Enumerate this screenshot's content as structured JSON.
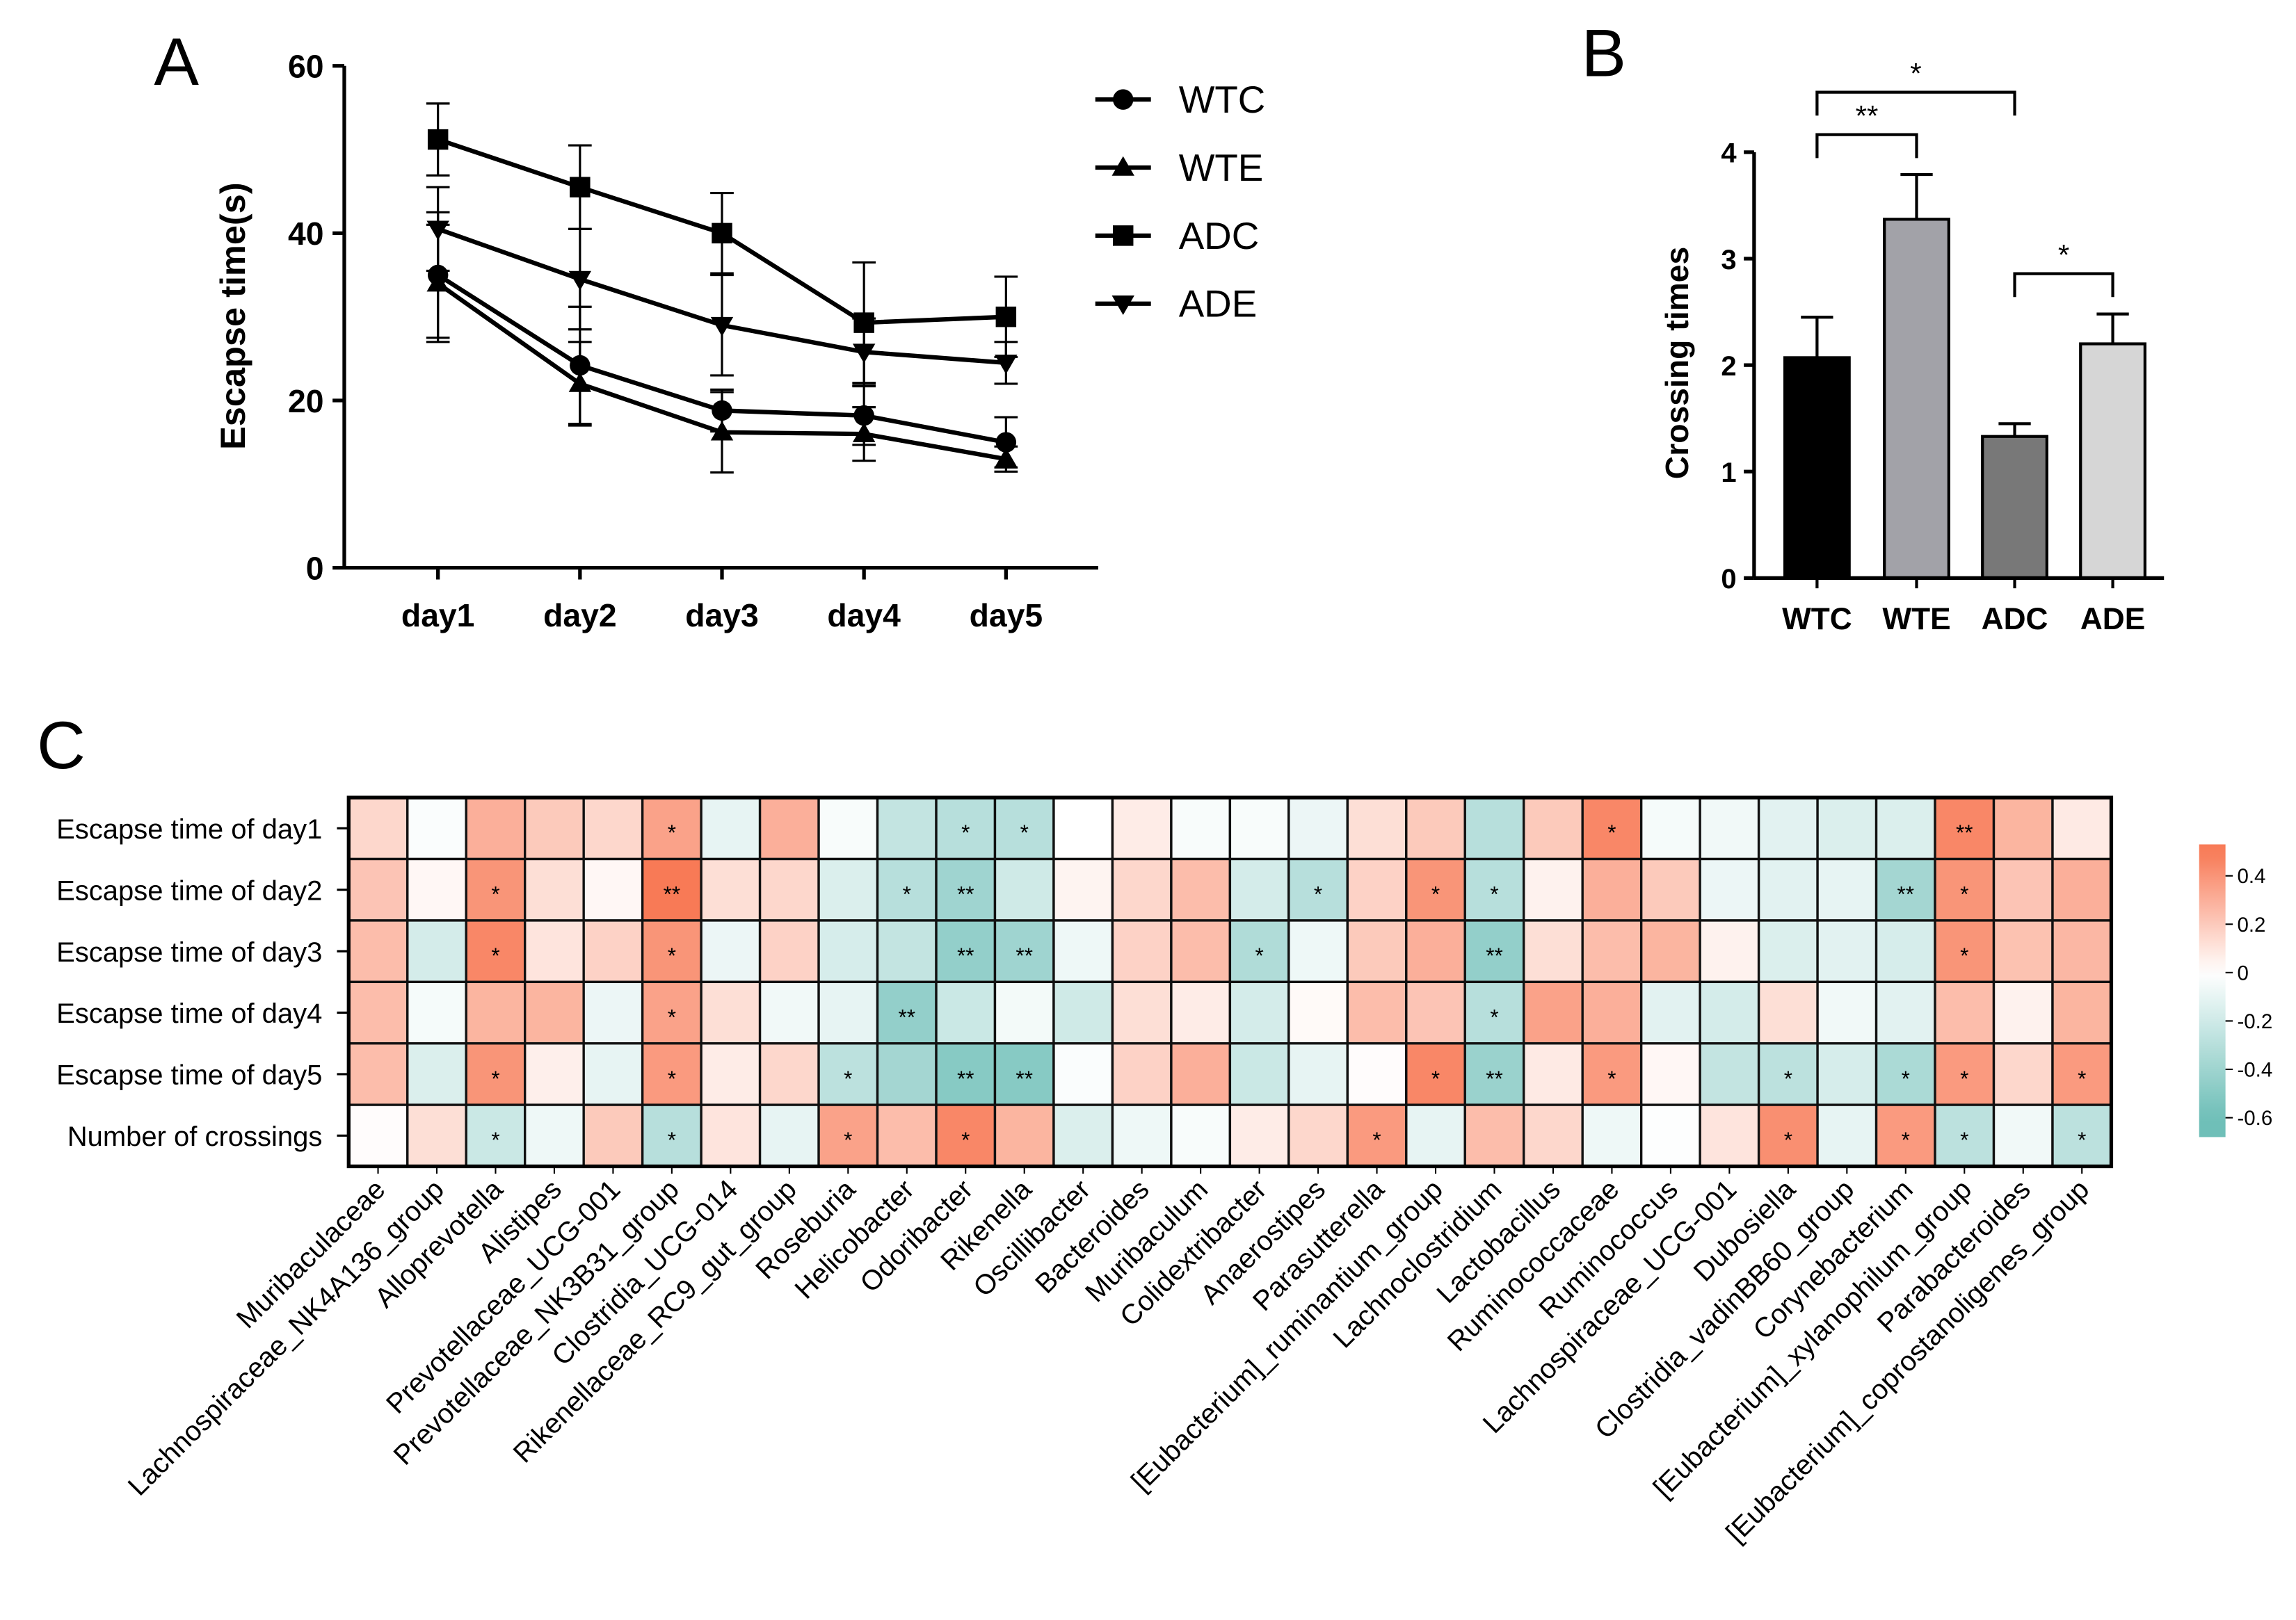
{
  "chart_data": [
    {
      "panel": "A",
      "type": "line",
      "ylabel": "Escapse time(s)",
      "xlabel": "",
      "categories": [
        "day1",
        "day2",
        "day3",
        "day4",
        "day5"
      ],
      "ylim": [
        0,
        60
      ],
      "yticks": [
        0,
        20,
        40,
        60
      ],
      "legend_position": "right",
      "series": [
        {
          "name": "WTC",
          "marker": "circle",
          "values": [
            35,
            24.2,
            18.8,
            18.2,
            15
          ],
          "errors": [
            7.5,
            7,
            2.5,
            3.5,
            3
          ]
        },
        {
          "name": "WTE",
          "marker": "triangle-up",
          "values": [
            34,
            22,
            16.2,
            16,
            13
          ],
          "errors": [
            7,
            5,
            4.8,
            3.2,
            1.5
          ]
        },
        {
          "name": "ADC",
          "marker": "square",
          "values": [
            51.2,
            45.5,
            40,
            29.3,
            30
          ],
          "errors": [
            4.3,
            5,
            4.8,
            7.2,
            4.8
          ]
        },
        {
          "name": "ADE",
          "marker": "triangle-down",
          "values": [
            40.5,
            34.5,
            29,
            25.8,
            24.5
          ],
          "errors": [
            5,
            6,
            6,
            4,
            2.5
          ]
        }
      ]
    },
    {
      "panel": "B",
      "type": "bar",
      "ylabel": "Crossing times",
      "categories": [
        "WTC",
        "WTE",
        "ADC",
        "ADE"
      ],
      "values": [
        2.07,
        3.37,
        1.33,
        2.2
      ],
      "errors": [
        0.38,
        0.42,
        0.12,
        0.28
      ],
      "colors": [
        "#000000",
        "#a2a2a8",
        "#787878",
        "#d6d6d6"
      ],
      "ylim": [
        0,
        4
      ],
      "yticks": [
        0,
        1,
        2,
        3,
        4
      ],
      "significance": [
        {
          "from": "WTC",
          "to": "ADC",
          "label": "*"
        },
        {
          "from": "WTC",
          "to": "WTE",
          "label": "**"
        },
        {
          "from": "ADC",
          "to": "ADE",
          "label": "*"
        }
      ]
    },
    {
      "panel": "C",
      "type": "heatmap",
      "rows": [
        "Escapse time of day1",
        "Escapse time of day2",
        "Escapse time of day3",
        "Escapse time of day4",
        "Escapse time of day5",
        "Number of crossings"
      ],
      "columns": [
        "Muribaculaceae",
        "Lachnospiraceae_NK4A136_group",
        "Alloprevotella",
        "Alistipes",
        "Prevotellaceae_UCG-001",
        "Prevotellaceae_NK3B31_group",
        "Clostridia_UCG-014",
        "Rikenellaceae_RC9_gut_group",
        "Roseburia",
        "Helicobacter",
        "Odoribacter",
        "Rikenella",
        "Oscillibacter",
        "Bacteroides",
        "Muribaculum",
        "Colidextribacter",
        "Anaerostipes",
        "Parasutterella",
        "[Eubacterium]_ruminantium_group",
        "Lachnoclostridium",
        "Lactobacillus",
        "Ruminococcaceae",
        "Ruminococcus",
        "Lachnospiraceae_UCG-001",
        "Dubosiella",
        "Clostridia_vadinBB60_group",
        "Corynebacterium",
        "[Eubacterium]_xylanophilum_group",
        "Parabacteroides",
        "[Eubacterium]_coprostanoligenes_group"
      ],
      "values": [
        [
          0.15,
          -0.02,
          0.3,
          0.2,
          0.15,
          0.35,
          -0.1,
          0.3,
          -0.03,
          -0.25,
          -0.3,
          -0.3,
          0,
          0.07,
          -0.03,
          -0.03,
          -0.08,
          0.12,
          0.2,
          -0.3,
          0.2,
          0.45,
          -0.04,
          -0.06,
          -0.12,
          -0.15,
          -0.15,
          0.45,
          0.28,
          0.08
        ],
        [
          0.22,
          0.03,
          0.4,
          0.12,
          0.03,
          0.5,
          0.12,
          0.15,
          -0.15,
          -0.3,
          -0.4,
          -0.2,
          0.04,
          0.15,
          0.25,
          -0.18,
          -0.3,
          0.17,
          0.4,
          -0.3,
          0.05,
          0.3,
          0.2,
          -0.08,
          -0.12,
          -0.1,
          -0.38,
          0.4,
          0.22,
          0.3
        ],
        [
          0.25,
          -0.18,
          0.45,
          0.1,
          0.17,
          0.4,
          -0.08,
          0.17,
          -0.17,
          -0.25,
          -0.45,
          -0.4,
          -0.07,
          0.17,
          0.25,
          -0.33,
          -0.07,
          0.2,
          0.3,
          -0.45,
          0.12,
          0.25,
          0.28,
          0.05,
          -0.15,
          -0.12,
          -0.17,
          0.4,
          0.23,
          0.27
        ],
        [
          0.25,
          -0.04,
          0.28,
          0.28,
          -0.08,
          0.35,
          0.12,
          -0.06,
          -0.1,
          -0.45,
          -0.22,
          -0.05,
          -0.2,
          0.12,
          0.07,
          -0.18,
          0.02,
          0.25,
          0.22,
          -0.3,
          0.35,
          0.3,
          -0.12,
          -0.18,
          0.12,
          -0.06,
          -0.12,
          0.25,
          0.05,
          0.28
        ],
        [
          0.25,
          -0.15,
          0.4,
          0.06,
          -0.1,
          0.38,
          0.07,
          0.15,
          -0.28,
          -0.38,
          -0.5,
          -0.5,
          -0.02,
          0.17,
          0.3,
          -0.22,
          -0.1,
          0.01,
          0.45,
          -0.42,
          0.08,
          0.38,
          0.03,
          -0.25,
          -0.28,
          -0.17,
          -0.35,
          0.38,
          0.15,
          0.38
        ],
        [
          0.01,
          0.12,
          -0.22,
          -0.07,
          0.2,
          -0.3,
          0.1,
          -0.1,
          0.35,
          0.25,
          0.45,
          0.28,
          -0.15,
          -0.07,
          -0.03,
          0.07,
          0.15,
          0.38,
          -0.1,
          0.25,
          0.15,
          -0.07,
          -0.01,
          0.1,
          0.42,
          -0.1,
          0.38,
          -0.28,
          -0.06,
          -0.28
        ]
      ],
      "significance": [
        [
          "",
          "",
          "",
          "",
          "",
          "*",
          "",
          "",
          "",
          "",
          "*",
          "*",
          "",
          "",
          "",
          "",
          "",
          "",
          "",
          "",
          "",
          "*",
          "",
          "",
          "",
          "",
          "",
          "**",
          "",
          ""
        ],
        [
          "",
          "",
          "*",
          "",
          "",
          "**",
          "",
          "",
          "",
          "*",
          "**",
          "",
          "",
          "",
          "",
          "",
          "*",
          "",
          "*",
          "*",
          "",
          "",
          "",
          "",
          "",
          "",
          "**",
          "*",
          "",
          ""
        ],
        [
          "",
          "",
          "*",
          "",
          "",
          "*",
          "",
          "",
          "",
          "",
          "**",
          "**",
          "",
          "",
          "",
          "*",
          "",
          "",
          "",
          "**",
          "",
          "",
          "",
          "",
          "",
          "",
          "",
          "*",
          "",
          ""
        ],
        [
          "",
          "",
          "",
          "",
          "",
          "*",
          "",
          "",
          "",
          "**",
          "",
          "",
          "",
          "",
          "",
          "",
          "",
          "",
          "",
          "*",
          "",
          "",
          "",
          "",
          "",
          "",
          "",
          "",
          "",
          ""
        ],
        [
          "",
          "",
          "*",
          "",
          "",
          "*",
          "",
          "",
          "*",
          "",
          "**",
          "**",
          "",
          "",
          "",
          "",
          "",
          "",
          "*",
          "**",
          "",
          "*",
          "",
          "",
          "*",
          "",
          "*",
          "*",
          "",
          "*"
        ],
        [
          "",
          "",
          "*",
          "",
          "",
          "*",
          "",
          "",
          "*",
          "",
          "*",
          "",
          "",
          "",
          "",
          "",
          "",
          "*",
          "",
          "",
          "",
          "",
          "",
          "",
          "*",
          "",
          "*",
          "*",
          "",
          "*"
        ]
      ],
      "colorbar": {
        "ticks": [
          0.4,
          0.2,
          0,
          -0.2,
          -0.4,
          -0.6
        ],
        "range": [
          -0.68,
          0.53
        ],
        "positive_color": "#f87a56",
        "negative_color": "#6fbfb8"
      }
    }
  ],
  "panel_labels": [
    "A",
    "B",
    "C"
  ]
}
